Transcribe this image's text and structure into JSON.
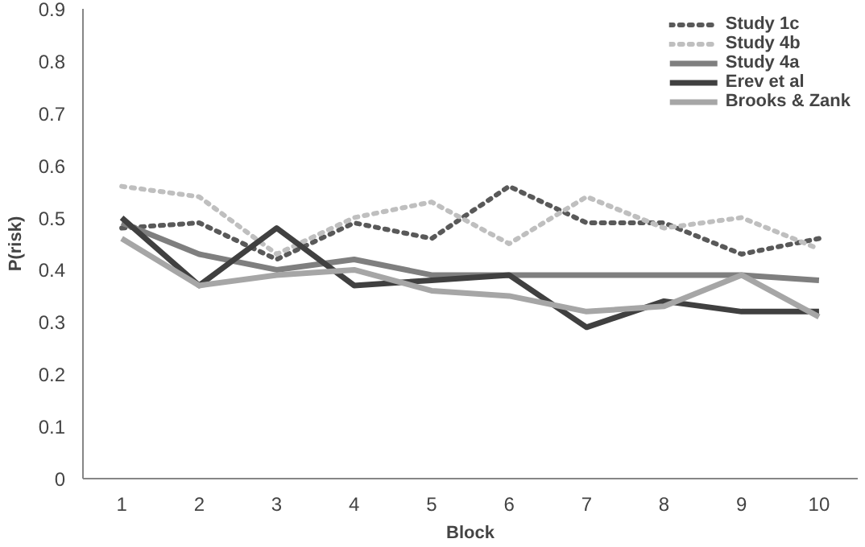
{
  "chart_data": {
    "type": "line",
    "xlabel": "Block",
    "ylabel": "P(risk)",
    "categories": [
      "1",
      "2",
      "3",
      "4",
      "5",
      "6",
      "7",
      "8",
      "9",
      "10"
    ],
    "ylim": [
      0,
      0.9
    ],
    "yticks": [
      0,
      0.1,
      0.2,
      0.3,
      0.4,
      0.5,
      0.6,
      0.7,
      0.8,
      0.9
    ],
    "grid": false,
    "legend": "top right",
    "marker": "none",
    "series": [
      {
        "name": "Study 1c",
        "color": "#595959",
        "line_style": "dotted",
        "values": [
          0.48,
          0.49,
          0.42,
          0.49,
          0.46,
          0.56,
          0.49,
          0.49,
          0.43,
          0.46
        ]
      },
      {
        "name": "Study 4b",
        "color": "#bfbfbf",
        "line_style": "dotted",
        "values": [
          0.56,
          0.54,
          0.43,
          0.5,
          0.53,
          0.45,
          0.54,
          0.48,
          0.5,
          0.44
        ]
      },
      {
        "name": "Study 4a",
        "color": "#7f7f7f",
        "line_style": "solid",
        "values": [
          0.49,
          0.43,
          0.4,
          0.42,
          0.39,
          0.39,
          0.39,
          0.39,
          0.39,
          0.38
        ]
      },
      {
        "name": "Erev et al",
        "color": "#404040",
        "line_style": "solid",
        "values": [
          0.5,
          0.37,
          0.48,
          0.37,
          0.38,
          0.39,
          0.29,
          0.34,
          0.32,
          0.32
        ]
      },
      {
        "name": "Brooks & Zank",
        "color": "#a6a6a6",
        "line_style": "solid",
        "values": [
          0.46,
          0.37,
          0.39,
          0.4,
          0.36,
          0.35,
          0.32,
          0.33,
          0.39,
          0.31
        ]
      }
    ]
  }
}
